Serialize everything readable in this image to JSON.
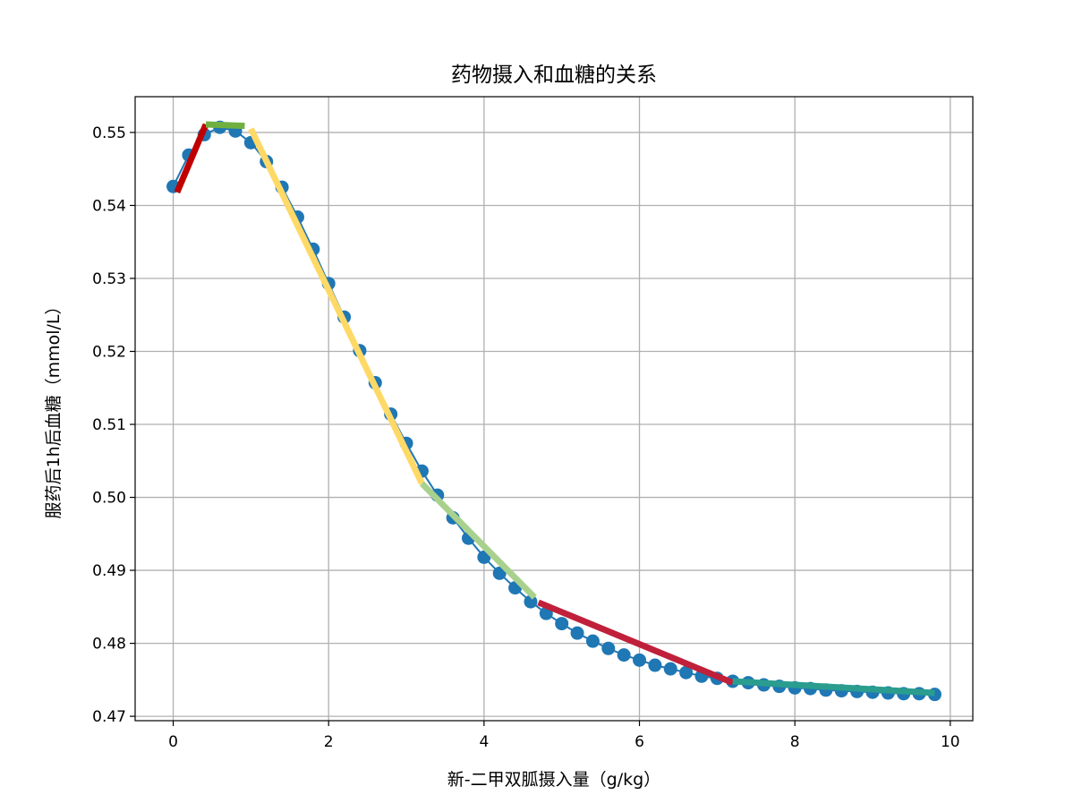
{
  "chart_data": {
    "type": "scatter",
    "title": "药物摄入和血糖的关系",
    "xlabel": "新-二甲双胍摄入量（g/kg）",
    "ylabel": "服药后1h后血糖（mmol/L）",
    "xlim": [
      -0.49,
      10.29
    ],
    "ylim": [
      0.4694,
      0.5549
    ],
    "xticks": [
      {
        "value": 0,
        "label": "0"
      },
      {
        "value": 2,
        "label": "2"
      },
      {
        "value": 4,
        "label": "4"
      },
      {
        "value": 6,
        "label": "6"
      },
      {
        "value": 8,
        "label": "8"
      },
      {
        "value": 10,
        "label": "10"
      }
    ],
    "yticks": [
      {
        "value": 0.47,
        "label": "0.47"
      },
      {
        "value": 0.48,
        "label": "0.48"
      },
      {
        "value": 0.49,
        "label": "0.49"
      },
      {
        "value": 0.5,
        "label": "0.50"
      },
      {
        "value": 0.51,
        "label": "0.51"
      },
      {
        "value": 0.52,
        "label": "0.52"
      },
      {
        "value": 0.53,
        "label": "0.53"
      },
      {
        "value": 0.54,
        "label": "0.54"
      },
      {
        "value": 0.55,
        "label": "0.55"
      }
    ],
    "grid": true,
    "point_color": "#1f77b4",
    "line_color": "#1f77b4",
    "x": [
      0.0,
      0.2,
      0.4,
      0.6,
      0.8,
      1.0,
      1.2,
      1.4,
      1.6,
      1.8,
      2.0,
      2.2,
      2.4,
      2.6,
      2.8,
      3.0,
      3.2,
      3.4,
      3.6,
      3.8,
      4.0,
      4.2,
      4.4,
      4.6,
      4.8,
      5.0,
      5.2,
      5.4,
      5.6,
      5.8,
      6.0,
      6.2,
      6.4,
      6.6,
      6.8,
      7.0,
      7.2,
      7.4,
      7.6,
      7.8,
      8.0,
      8.2,
      8.4,
      8.6,
      8.8,
      9.0,
      9.2,
      9.4,
      9.6,
      9.8
    ],
    "y": [
      0.5426,
      0.5469,
      0.5497,
      0.5507,
      0.5502,
      0.5486,
      0.546,
      0.5425,
      0.5384,
      0.534,
      0.5293,
      0.5247,
      0.5201,
      0.5157,
      0.5114,
      0.5074,
      0.5036,
      0.5003,
      0.4972,
      0.4944,
      0.4918,
      0.4896,
      0.4876,
      0.4857,
      0.4841,
      0.4827,
      0.4814,
      0.4803,
      0.4793,
      0.4784,
      0.4777,
      0.477,
      0.4765,
      0.476,
      0.4755,
      0.4752,
      0.4748,
      0.4746,
      0.4743,
      0.4741,
      0.4739,
      0.4738,
      0.4736,
      0.4735,
      0.4734,
      0.4733,
      0.4732,
      0.4731,
      0.4731,
      0.473
    ],
    "segments": [
      {
        "x": [
          0.05,
          0.42
        ],
        "y": [
          0.5418,
          0.5511
        ],
        "color": "#c00000"
      },
      {
        "x": [
          0.42,
          0.92
        ],
        "y": [
          0.5511,
          0.5509
        ],
        "color": "#70b040"
      },
      {
        "x": [
          1.0,
          3.2
        ],
        "y": [
          0.5505,
          0.5019
        ],
        "color": "#ffd966"
      },
      {
        "x": [
          3.2,
          4.65
        ],
        "y": [
          0.5019,
          0.4863
        ],
        "color": "#a9d18e"
      },
      {
        "x": [
          4.7,
          7.2
        ],
        "y": [
          0.4856,
          0.4746
        ],
        "color": "#c0203a"
      },
      {
        "x": [
          7.2,
          9.8
        ],
        "y": [
          0.4748,
          0.4732
        ],
        "color": "#2a9d8f"
      }
    ]
  }
}
